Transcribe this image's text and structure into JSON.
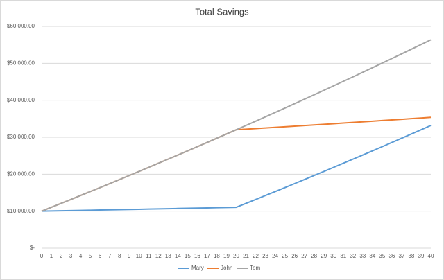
{
  "chart_data": {
    "type": "line",
    "title": "Total Savings",
    "categories": [
      "0",
      "1",
      "2",
      "3",
      "4",
      "5",
      "6",
      "7",
      "8",
      "9",
      "10",
      "11",
      "12",
      "13",
      "14",
      "15",
      "16",
      "17",
      "18",
      "19",
      "20",
      "21",
      "22",
      "23",
      "24",
      "25",
      "26",
      "27",
      "28",
      "29",
      "30",
      "31",
      "32",
      "33",
      "34",
      "35",
      "36",
      "37",
      "38",
      "39",
      "40"
    ],
    "series": [
      {
        "name": "Mary",
        "color": "#5b9bd5",
        "values": [
          10000,
          10050,
          10100,
          10151,
          10202,
          10253,
          10304,
          10355,
          10407,
          10459,
          10511,
          10564,
          10617,
          10670,
          10723,
          10777,
          10831,
          10885,
          10939,
          10994,
          11049,
          12104,
          13165,
          14231,
          15302,
          16379,
          17461,
          18548,
          19641,
          20739,
          21843,
          22952,
          24067,
          25187,
          26313,
          27445,
          28582,
          29725,
          30874,
          32028,
          33188
        ]
      },
      {
        "name": "John",
        "color": "#ed7d31",
        "values": [
          10000,
          11050,
          12105,
          13166,
          14231,
          15303,
          16379,
          17461,
          18548,
          19641,
          20739,
          21843,
          22952,
          24067,
          25187,
          26313,
          27445,
          28582,
          29725,
          30874,
          32028,
          32188,
          32349,
          32511,
          32673,
          32837,
          33001,
          33166,
          33332,
          33498,
          33666,
          33834,
          34003,
          34173,
          34344,
          34516,
          34689,
          34862,
          35036,
          35212,
          35388
        ]
      },
      {
        "name": "Tom",
        "color": "#a5a5a5",
        "values": [
          10000,
          11050,
          12105,
          13166,
          14231,
          15303,
          16379,
          17461,
          18548,
          19641,
          20739,
          21843,
          22952,
          24067,
          25187,
          26313,
          27445,
          28582,
          29725,
          30874,
          32028,
          33188,
          34354,
          35526,
          36704,
          37888,
          39077,
          40272,
          41473,
          42680,
          43893,
          45112,
          46338,
          47570,
          48808,
          50052,
          51302,
          52559,
          53822,
          55091,
          56366
        ]
      }
    ],
    "ylim": [
      0,
      60000
    ],
    "yticks": [
      {
        "value": 0,
        "label": "$-"
      },
      {
        "value": 10000,
        "label": "$10,000.00"
      },
      {
        "value": 20000,
        "label": "$20,000.00"
      },
      {
        "value": 30000,
        "label": "$30,000.00"
      },
      {
        "value": 40000,
        "label": "$40,000.00"
      },
      {
        "value": 50000,
        "label": "$50,000.00"
      },
      {
        "value": 60000,
        "label": "$60,000.00"
      }
    ],
    "grid": true,
    "legend": "bottom"
  }
}
